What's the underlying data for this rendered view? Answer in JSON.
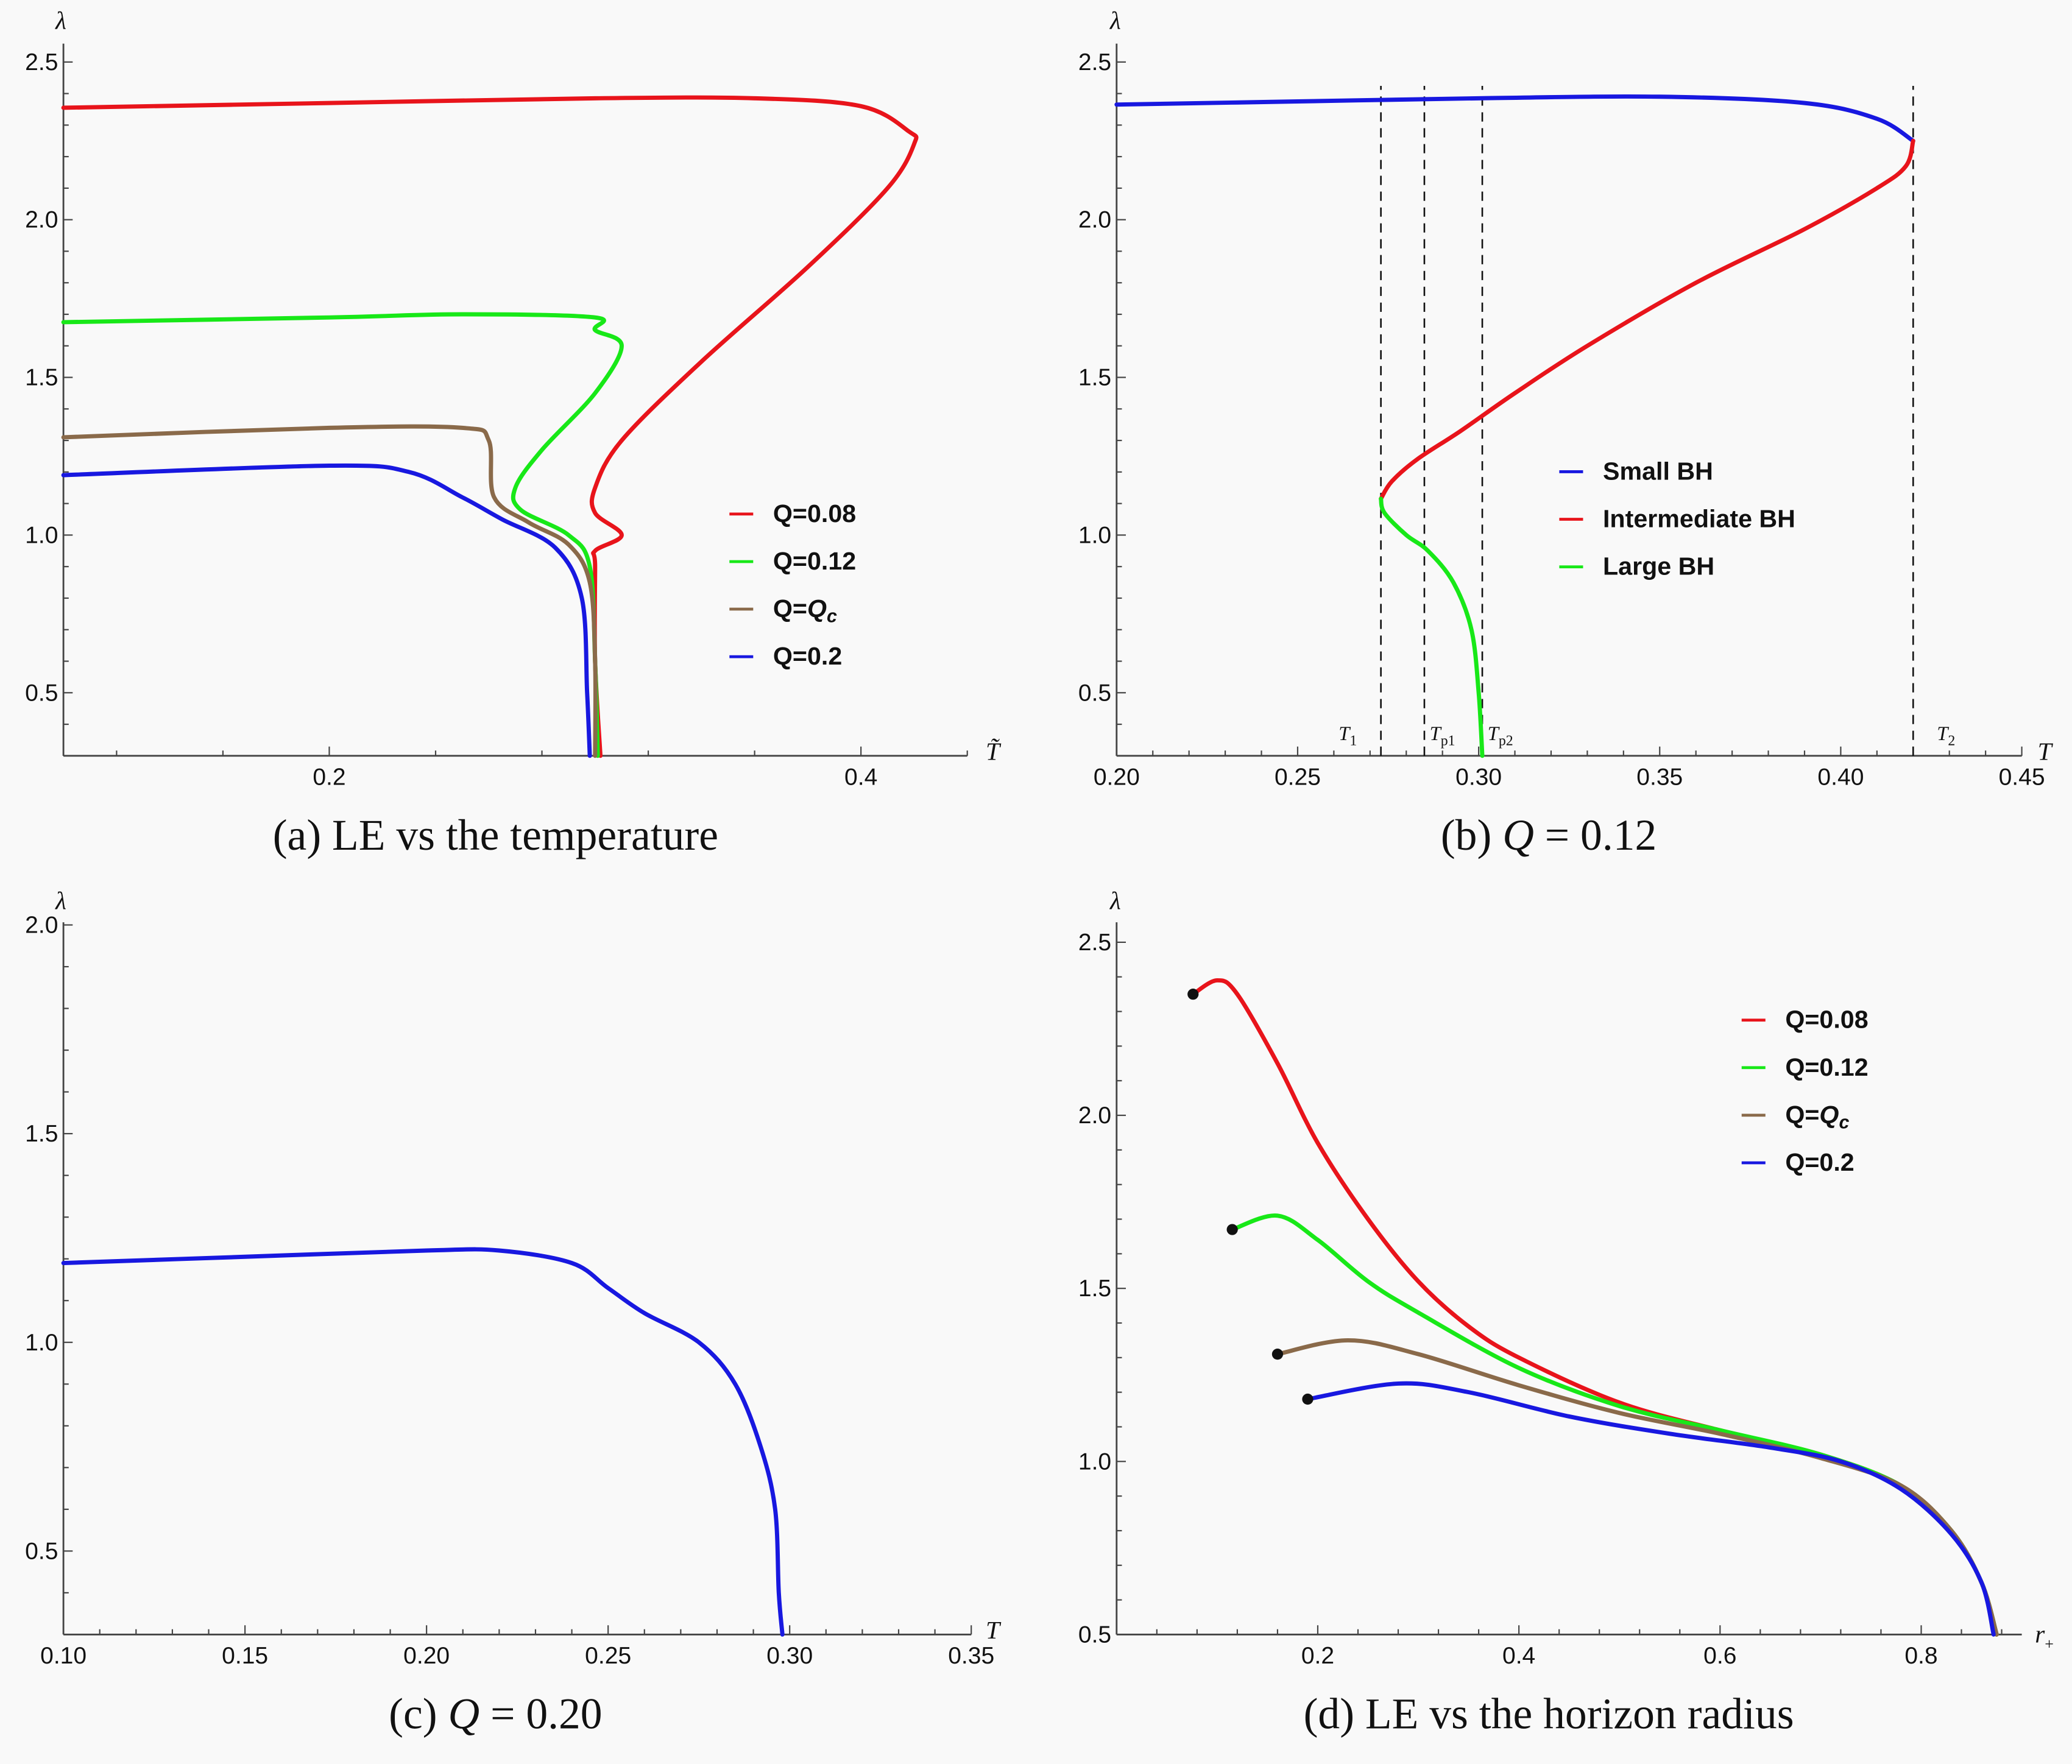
{
  "chart_data": [
    {
      "id": "a",
      "type": "line",
      "caption": "(a) LE vs the temperature",
      "xlabel": "T̃",
      "ylabel": "λ",
      "xlim": [
        0.1,
        0.44
      ],
      "ylim": [
        0.3,
        2.55
      ],
      "xticks": [
        0.2,
        0.4
      ],
      "xtick_labels": [
        "0.2",
        "0.4"
      ],
      "yticks": [
        0.5,
        1.0,
        1.5,
        2.0,
        2.5
      ],
      "ytick_labels": [
        "0.5",
        "1.0",
        "1.5",
        "2.0",
        "2.5"
      ],
      "legend_position": "right-middle",
      "series": [
        {
          "name": "Q=0.08",
          "color": "#e8141b",
          "points": [
            [
              0.1,
              2.355
            ],
            [
              0.2,
              2.37
            ],
            [
              0.3,
              2.385
            ],
            [
              0.36,
              2.385
            ],
            [
              0.4,
              2.36
            ],
            [
              0.418,
              2.28
            ],
            [
              0.42,
              2.24
            ],
            [
              0.41,
              2.1
            ],
            [
              0.38,
              1.85
            ],
            [
              0.34,
              1.55
            ],
            [
              0.31,
              1.3
            ],
            [
              0.3,
              1.15
            ],
            [
              0.3,
              1.07
            ],
            [
              0.31,
              1.0
            ],
            [
              0.3,
              0.95
            ],
            [
              0.3,
              0.9
            ],
            [
              0.3,
              0.6
            ],
            [
              0.302,
              0.3
            ]
          ]
        },
        {
          "name": "Q=0.12",
          "color": "#18e818",
          "points": [
            [
              0.1,
              1.675
            ],
            [
              0.2,
              1.69
            ],
            [
              0.25,
              1.7
            ],
            [
              0.3,
              1.69
            ],
            [
              0.3,
              1.65
            ],
            [
              0.31,
              1.6
            ],
            [
              0.3,
              1.45
            ],
            [
              0.28,
              1.27
            ],
            [
              0.27,
              1.15
            ],
            [
              0.272,
              1.08
            ],
            [
              0.29,
              1.0
            ],
            [
              0.298,
              0.9
            ],
            [
              0.3,
              0.6
            ],
            [
              0.301,
              0.3
            ]
          ]
        },
        {
          "name": "Q=Qc",
          "color": "#8a6a4a",
          "points": [
            [
              0.1,
              1.31
            ],
            [
              0.2,
              1.34
            ],
            [
              0.25,
              1.34
            ],
            [
              0.26,
              1.3
            ],
            [
              0.262,
              1.12
            ],
            [
              0.275,
              1.04
            ],
            [
              0.29,
              0.97
            ],
            [
              0.298,
              0.85
            ],
            [
              0.3,
              0.6
            ],
            [
              0.3,
              0.3
            ]
          ]
        },
        {
          "name": "Q=0.2",
          "color": "#1818e0",
          "points": [
            [
              0.1,
              1.19
            ],
            [
              0.2,
              1.22
            ],
            [
              0.23,
              1.2
            ],
            [
              0.25,
              1.12
            ],
            [
              0.265,
              1.05
            ],
            [
              0.285,
              0.96
            ],
            [
              0.295,
              0.8
            ],
            [
              0.297,
              0.5
            ],
            [
              0.298,
              0.3
            ]
          ]
        }
      ]
    },
    {
      "id": "b",
      "type": "line",
      "caption": "(b) Q = 0.12",
      "xlabel": "T",
      "ylabel": "λ",
      "xlim": [
        0.2,
        0.45
      ],
      "ylim": [
        0.3,
        2.55
      ],
      "xticks": [
        0.2,
        0.25,
        0.3,
        0.35,
        0.4,
        0.45
      ],
      "xtick_labels": [
        "0.20",
        "0.25",
        "0.30",
        "0.35",
        "0.40",
        "0.45"
      ],
      "yticks": [
        0.5,
        1.0,
        1.5,
        2.0,
        2.5
      ],
      "ytick_labels": [
        "0.5",
        "1.0",
        "1.5",
        "2.0",
        "2.5"
      ],
      "legend_position": "center",
      "vertical_markers": [
        {
          "label": "T1",
          "base": "T",
          "sub": "1",
          "x": 0.273
        },
        {
          "label": "Tp1",
          "base": "T",
          "sub": "p1",
          "x": 0.285
        },
        {
          "label": "Tp2",
          "base": "T",
          "sub": "p2",
          "x": 0.301
        },
        {
          "label": "T2",
          "base": "T",
          "sub": "2",
          "x": 0.42
        }
      ],
      "series": [
        {
          "name": "Small BH",
          "color": "#1818e0",
          "points": [
            [
              0.2,
              2.365
            ],
            [
              0.25,
              2.375
            ],
            [
              0.3,
              2.385
            ],
            [
              0.35,
              2.39
            ],
            [
              0.39,
              2.37
            ],
            [
              0.41,
              2.32
            ],
            [
              0.42,
              2.25
            ]
          ]
        },
        {
          "name": "Intermediate BH",
          "color": "#e8141b",
          "points": [
            [
              0.42,
              2.25
            ],
            [
              0.418,
              2.17
            ],
            [
              0.41,
              2.1
            ],
            [
              0.39,
              1.97
            ],
            [
              0.36,
              1.8
            ],
            [
              0.33,
              1.6
            ],
            [
              0.31,
              1.45
            ],
            [
              0.295,
              1.33
            ],
            [
              0.283,
              1.24
            ],
            [
              0.276,
              1.17
            ],
            [
              0.273,
              1.115
            ]
          ]
        },
        {
          "name": "Large BH",
          "color": "#18e818",
          "points": [
            [
              0.273,
              1.115
            ],
            [
              0.274,
              1.07
            ],
            [
              0.28,
              1.0
            ],
            [
              0.286,
              0.95
            ],
            [
              0.293,
              0.85
            ],
            [
              0.298,
              0.7
            ],
            [
              0.3,
              0.5
            ],
            [
              0.301,
              0.3
            ]
          ]
        }
      ]
    },
    {
      "id": "c",
      "type": "line",
      "caption": "(c) Q = 0.20",
      "xlabel": "T",
      "ylabel": "λ",
      "xlim": [
        0.1,
        0.35
      ],
      "ylim": [
        0.3,
        2.0
      ],
      "xticks": [
        0.1,
        0.15,
        0.2,
        0.25,
        0.3,
        0.35
      ],
      "xtick_labels": [
        "0.10",
        "0.15",
        "0.20",
        "0.25",
        "0.30",
        "0.35"
      ],
      "yticks": [
        0.5,
        1.0,
        1.5,
        2.0
      ],
      "ytick_labels": [
        "0.5",
        "1.0",
        "1.5",
        "2.0"
      ],
      "series": [
        {
          "name": "Q=0.2",
          "color": "#1818e0",
          "points": [
            [
              0.1,
              1.19
            ],
            [
              0.15,
              1.205
            ],
            [
              0.2,
              1.22
            ],
            [
              0.22,
              1.22
            ],
            [
              0.24,
              1.19
            ],
            [
              0.25,
              1.13
            ],
            [
              0.26,
              1.07
            ],
            [
              0.275,
              1.0
            ],
            [
              0.285,
              0.9
            ],
            [
              0.292,
              0.75
            ],
            [
              0.296,
              0.6
            ],
            [
              0.297,
              0.4
            ],
            [
              0.298,
              0.3
            ]
          ]
        }
      ]
    },
    {
      "id": "d",
      "type": "line",
      "caption": "(d) LE vs the horizon radius",
      "xlabel": "r+",
      "ylabel": "λ",
      "xlim": [
        0.0,
        0.9
      ],
      "ylim": [
        0.5,
        2.55
      ],
      "xticks": [
        0.2,
        0.4,
        0.6,
        0.8
      ],
      "xtick_labels": [
        "0.2",
        "0.4",
        "0.6",
        "0.8"
      ],
      "yticks": [
        0.5,
        1.0,
        1.5,
        2.0,
        2.5
      ],
      "ytick_labels": [
        "0.5",
        "1.0",
        "1.5",
        "2.0",
        "2.5"
      ],
      "legend_position": "top-right",
      "series": [
        {
          "name": "Q=0.08",
          "color": "#e8141b",
          "start_marker": true,
          "points": [
            [
              0.076,
              2.35
            ],
            [
              0.1,
              2.39
            ],
            [
              0.12,
              2.35
            ],
            [
              0.16,
              2.15
            ],
            [
              0.2,
              1.92
            ],
            [
              0.25,
              1.7
            ],
            [
              0.3,
              1.52
            ],
            [
              0.35,
              1.39
            ],
            [
              0.4,
              1.3
            ],
            [
              0.5,
              1.17
            ],
            [
              0.6,
              1.09
            ],
            [
              0.7,
              1.02
            ],
            [
              0.78,
              0.93
            ],
            [
              0.83,
              0.8
            ],
            [
              0.86,
              0.65
            ],
            [
              0.875,
              0.5
            ]
          ]
        },
        {
          "name": "Q=0.12",
          "color": "#18e818",
          "start_marker": true,
          "points": [
            [
              0.115,
              1.67
            ],
            [
              0.16,
              1.71
            ],
            [
              0.2,
              1.64
            ],
            [
              0.25,
              1.52
            ],
            [
              0.3,
              1.43
            ],
            [
              0.4,
              1.27
            ],
            [
              0.5,
              1.16
            ],
            [
              0.6,
              1.09
            ],
            [
              0.7,
              1.02
            ],
            [
              0.78,
              0.93
            ],
            [
              0.83,
              0.8
            ],
            [
              0.86,
              0.65
            ],
            [
              0.875,
              0.5
            ]
          ]
        },
        {
          "name": "Q=Qc",
          "color": "#8a6a4a",
          "start_marker": true,
          "points": [
            [
              0.16,
              1.31
            ],
            [
              0.23,
              1.35
            ],
            [
              0.3,
              1.31
            ],
            [
              0.4,
              1.22
            ],
            [
              0.5,
              1.14
            ],
            [
              0.6,
              1.08
            ],
            [
              0.7,
              1.01
            ],
            [
              0.78,
              0.93
            ],
            [
              0.83,
              0.8
            ],
            [
              0.86,
              0.65
            ],
            [
              0.875,
              0.5
            ]
          ]
        },
        {
          "name": "Q=0.2",
          "color": "#1818e0",
          "start_marker": true,
          "points": [
            [
              0.19,
              1.18
            ],
            [
              0.28,
              1.225
            ],
            [
              0.35,
              1.2
            ],
            [
              0.45,
              1.13
            ],
            [
              0.55,
              1.08
            ],
            [
              0.65,
              1.04
            ],
            [
              0.72,
              1.0
            ],
            [
              0.78,
              0.92
            ],
            [
              0.83,
              0.79
            ],
            [
              0.86,
              0.65
            ],
            [
              0.872,
              0.5
            ]
          ]
        }
      ]
    }
  ],
  "legend_labels_a": [
    "Q=0.08",
    "Q=0.12",
    "Q=Q",
    "Q=0.2"
  ],
  "legend_subscript": "c"
}
